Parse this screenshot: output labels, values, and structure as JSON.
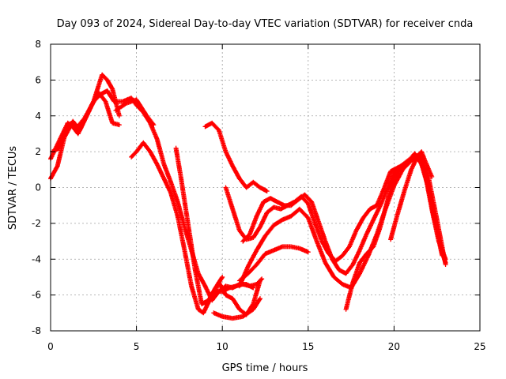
{
  "chart_data": {
    "type": "scatter",
    "title": "Day 093 of 2024, Sidereal Day-to-day VTEC variation (SDTVAR) for receiver cnda",
    "xlabel": "GPS time / hours",
    "ylabel": "SDTVAR / TECUs",
    "xlim": [
      0,
      25
    ],
    "ylim": [
      -8,
      8
    ],
    "x_ticks": [
      0,
      5,
      10,
      15,
      20,
      25
    ],
    "y_ticks": [
      -8,
      -6,
      -4,
      -2,
      0,
      2,
      4,
      6,
      8
    ],
    "grid": true,
    "marker": "+",
    "color": "#ff0000",
    "series": [
      {
        "x": [
          0.0,
          0.5,
          1.0,
          1.5,
          2.0,
          2.5,
          3.0,
          3.3,
          3.6,
          4.0
        ],
        "y": [
          1.6,
          2.6,
          3.6,
          3.3,
          3.9,
          4.8,
          6.3,
          6.0,
          5.5,
          4.0
        ]
      },
      {
        "x": [
          0.0,
          0.4,
          0.8,
          1.2,
          1.6,
          2.0,
          2.4,
          2.8,
          3.2,
          3.6,
          4.0
        ],
        "y": [
          0.5,
          1.2,
          2.8,
          3.5,
          3.0,
          3.8,
          4.6,
          5.3,
          4.8,
          3.6,
          3.5
        ]
      },
      {
        "x": [
          0.1,
          0.5,
          0.9,
          1.3,
          1.7,
          2.1,
          2.5,
          2.9,
          3.3,
          3.7,
          4.2,
          4.7,
          5.0,
          5.4,
          5.8,
          6.2,
          6.6,
          7.0,
          7.4,
          7.8,
          8.2,
          8.6,
          9.0,
          9.4,
          9.8,
          10.2,
          10.6,
          11.0,
          11.4,
          11.8
        ],
        "y": [
          2.0,
          2.2,
          3.2,
          3.7,
          3.2,
          4.0,
          4.8,
          5.2,
          5.4,
          4.8,
          4.8,
          5.0,
          4.6,
          4.2,
          3.6,
          2.7,
          1.3,
          0.3,
          -0.8,
          -2.2,
          -3.5,
          -4.8,
          -5.5,
          -6.3,
          -5.8,
          -5.5,
          -5.6,
          -5.4,
          -5.4,
          -5.6
        ]
      },
      {
        "x": [
          3.8,
          4.4,
          5.0,
          5.6,
          6.0
        ],
        "y": [
          4.3,
          4.7,
          4.9,
          4.0,
          3.5
        ]
      },
      {
        "x": [
          4.7,
          5.0,
          5.4,
          5.8,
          6.2,
          6.6,
          7.0,
          7.4,
          7.8,
          8.2,
          8.6,
          8.9,
          9.2,
          9.6,
          10.0,
          10.4,
          10.8,
          11.2,
          11.6,
          12.0,
          12.3
        ],
        "y": [
          1.7,
          2.0,
          2.5,
          2.0,
          1.3,
          0.5,
          -0.3,
          -1.6,
          -3.5,
          -5.5,
          -6.8,
          -7.0,
          -6.4,
          -5.8,
          -5.8,
          -5.6,
          -5.5,
          -5.4,
          -5.5,
          -5.4,
          -5.1
        ]
      },
      {
        "x": [
          7.3,
          7.6,
          8.0,
          8.4,
          8.8,
          9.2,
          9.6,
          10.0
        ],
        "y": [
          2.2,
          0.5,
          -2.0,
          -4.5,
          -6.5,
          -6.3,
          -5.6,
          -5.0
        ]
      },
      {
        "x": [
          9.0,
          9.4,
          9.8,
          10.2,
          10.6,
          11.0,
          11.4,
          11.8,
          12.2
        ],
        "y": [
          -6.5,
          -6.2,
          -5.3,
          -6.0,
          -6.2,
          -6.8,
          -7.1,
          -6.5,
          -5.2
        ]
      },
      {
        "x": [
          9.5,
          10.0,
          10.6,
          11.2,
          11.8,
          12.2
        ],
        "y": [
          -7.0,
          -7.2,
          -7.3,
          -7.2,
          -6.8,
          -6.2
        ]
      },
      {
        "x": [
          9.0,
          9.4,
          9.8,
          10.2,
          10.6,
          11.0,
          11.4,
          11.8,
          12.2,
          12.6
        ],
        "y": [
          3.4,
          3.6,
          3.2,
          2.0,
          1.2,
          0.5,
          0.0,
          0.3,
          0.0,
          -0.2
        ]
      },
      {
        "x": [
          10.2,
          10.6,
          11.0,
          11.4,
          11.8,
          12.2,
          12.6,
          13.0,
          13.4,
          13.8,
          14.2,
          14.6,
          15.0,
          15.4,
          15.8,
          16.2,
          16.6,
          17.0,
          17.4,
          17.8,
          18.2,
          18.6,
          19.0,
          19.4,
          19.8,
          20.2,
          20.6,
          21.0,
          21.4,
          21.8,
          22.2,
          22.6,
          23.0
        ],
        "y": [
          0.0,
          -1.2,
          -2.4,
          -2.9,
          -2.8,
          -2.2,
          -1.4,
          -1.1,
          -1.2,
          -1.0,
          -0.8,
          -0.5,
          -0.9,
          -2.0,
          -3.0,
          -3.7,
          -4.1,
          -3.8,
          -3.3,
          -2.4,
          -1.7,
          -1.2,
          -1.0,
          -0.1,
          0.9,
          1.1,
          1.3,
          1.6,
          1.8,
          0.8,
          -1.2,
          -3.0,
          -4.0
        ]
      },
      {
        "x": [
          11.2,
          11.6,
          12.0,
          12.4,
          12.8,
          13.2,
          13.6,
          14.0,
          14.4,
          14.8,
          15.2,
          15.6,
          16.0,
          16.4,
          16.8,
          17.2,
          17.6,
          18.0,
          18.4,
          18.8,
          19.2,
          19.6,
          20.0,
          20.4,
          20.8,
          21.2,
          21.6,
          22.0,
          22.4,
          22.8,
          23.0
        ],
        "y": [
          -3.0,
          -2.6,
          -1.6,
          -0.8,
          -0.6,
          -0.8,
          -1.0,
          -1.0,
          -0.7,
          -0.4,
          -0.8,
          -1.9,
          -3.0,
          -4.0,
          -4.6,
          -4.8,
          -4.3,
          -3.5,
          -2.6,
          -1.8,
          -1.0,
          -0.1,
          0.8,
          1.1,
          1.4,
          1.9,
          1.3,
          0.0,
          -2.0,
          -3.6,
          -4.2
        ]
      },
      {
        "x": [
          11.0,
          11.5,
          12.0,
          12.5,
          13.0,
          13.5,
          14.0,
          14.5,
          15.0,
          15.5,
          16.0,
          16.5,
          17.0,
          17.5,
          18.0,
          18.5,
          19.0,
          19.5,
          20.0,
          20.5,
          21.0,
          21.5,
          22.0,
          22.5,
          23.0
        ],
        "y": [
          -5.5,
          -4.4,
          -3.5,
          -2.7,
          -2.1,
          -1.8,
          -1.6,
          -1.2,
          -1.7,
          -3.0,
          -4.2,
          -5.0,
          -5.4,
          -5.6,
          -4.8,
          -3.8,
          -2.6,
          -1.2,
          0.1,
          1.0,
          1.5,
          1.8,
          0.6,
          -1.8,
          -4.3
        ]
      },
      {
        "x": [
          11.0,
          11.5,
          12.0,
          12.5,
          13.0,
          13.5,
          14.0,
          14.5,
          15.0
        ],
        "y": [
          -5.2,
          -4.8,
          -4.3,
          -3.7,
          -3.5,
          -3.3,
          -3.3,
          -3.4,
          -3.6
        ]
      },
      {
        "x": [
          17.2,
          17.6,
          18.0,
          18.4,
          18.8,
          19.2,
          19.6,
          20.0,
          20.4,
          20.8,
          21.2,
          21.6,
          22.0,
          22.4,
          22.8
        ],
        "y": [
          -6.8,
          -5.3,
          -4.2,
          -3.7,
          -3.3,
          -2.2,
          -0.8,
          0.5,
          1.2,
          1.5,
          1.8,
          1.5,
          0.0,
          -2.0,
          -3.8
        ]
      },
      {
        "x": [
          19.8,
          20.2,
          20.6,
          21.0,
          21.4,
          21.6,
          21.8,
          22.2
        ],
        "y": [
          -2.9,
          -1.5,
          -0.2,
          1.0,
          1.8,
          2.0,
          1.5,
          0.6
        ]
      }
    ]
  }
}
